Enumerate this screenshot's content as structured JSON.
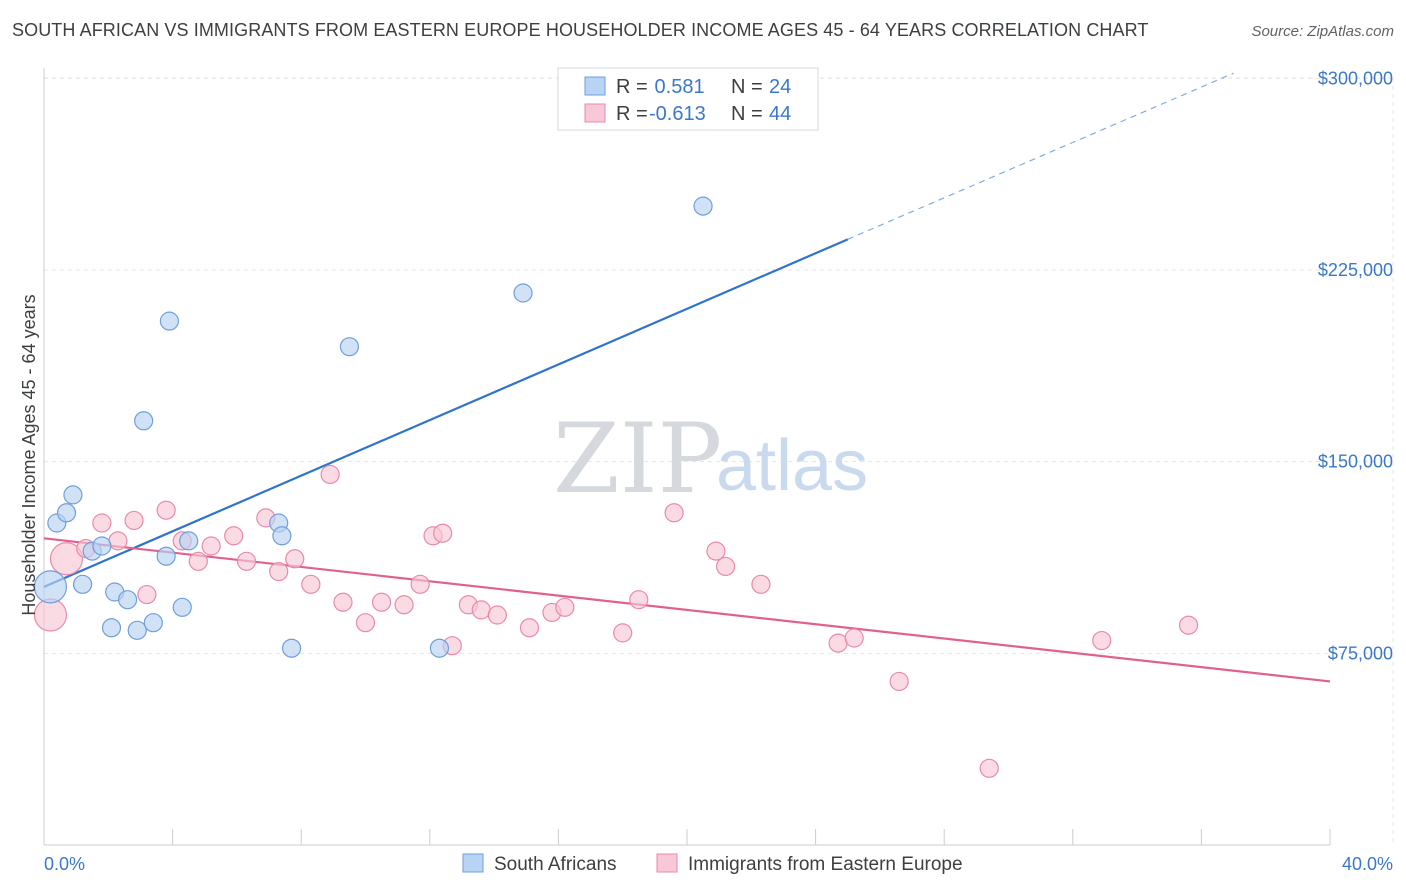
{
  "header": {
    "title": "SOUTH AFRICAN VS IMMIGRANTS FROM EASTERN EUROPE HOUSEHOLDER INCOME AGES 45 - 64 YEARS CORRELATION CHART",
    "source": "Source: ZipAtlas.com"
  },
  "colors": {
    "blue_fill": "#b8d3f3",
    "blue_stroke": "#6e9fdc",
    "blue_line": "#2f74cc",
    "pink_fill": "#f8c8d6",
    "pink_stroke": "#e98aaa",
    "pink_line": "#e0608e",
    "accent_text": "#3b78c9",
    "grid": "#e3e6ea"
  },
  "watermark": {
    "part1": "ZIP",
    "part2": "atlas"
  },
  "chart_data": {
    "type": "scatter",
    "title": "SOUTH AFRICAN VS IMMIGRANTS FROM EASTERN EUROPE HOUSEHOLDER INCOME AGES 45 - 64 YEARS CORRELATION CHART",
    "xlabel": "",
    "ylabel": "Householder Income Ages 45 - 64 years",
    "xlim": [
      0,
      40
    ],
    "ylim": [
      0,
      310000
    ],
    "x_tick_labels": {
      "left": "0.0%",
      "right": "40.0%"
    },
    "y_ticks": [
      {
        "value": 75000,
        "label": "$75,000"
      },
      {
        "value": 150000,
        "label": "$150,000"
      },
      {
        "value": 225000,
        "label": "$225,000"
      },
      {
        "value": 300000,
        "label": "$300,000"
      }
    ],
    "legend": {
      "position": "top-center",
      "rows": [
        {
          "r_label": "R =",
          "r_value": " 0.581",
          "n_label": "N =",
          "n_value": "24"
        },
        {
          "r_label": "R =",
          "r_value": "-0.613",
          "n_label": "N =",
          "n_value": "44"
        }
      ]
    },
    "series": [
      {
        "name": "South Africans",
        "color": "blue",
        "trend": {
          "x0": 0.0,
          "y0": 101000,
          "x1": 25.0,
          "y1": 237000,
          "dash_x1": 37.0,
          "dash_y1": 302000
        },
        "points": [
          {
            "x": 0.2,
            "y": 101000,
            "big": true
          },
          {
            "x": 0.4,
            "y": 126000
          },
          {
            "x": 0.7,
            "y": 130000
          },
          {
            "x": 0.9,
            "y": 137000
          },
          {
            "x": 1.2,
            "y": 102000
          },
          {
            "x": 1.5,
            "y": 115000
          },
          {
            "x": 1.8,
            "y": 117000
          },
          {
            "x": 2.1,
            "y": 85000
          },
          {
            "x": 2.2,
            "y": 99000
          },
          {
            "x": 2.6,
            "y": 96000
          },
          {
            "x": 2.9,
            "y": 84000
          },
          {
            "x": 3.1,
            "y": 166000
          },
          {
            "x": 3.4,
            "y": 87000
          },
          {
            "x": 3.8,
            "y": 113000
          },
          {
            "x": 3.9,
            "y": 205000
          },
          {
            "x": 4.3,
            "y": 93000
          },
          {
            "x": 4.5,
            "y": 119000
          },
          {
            "x": 7.3,
            "y": 126000
          },
          {
            "x": 7.4,
            "y": 121000
          },
          {
            "x": 7.7,
            "y": 77000
          },
          {
            "x": 9.5,
            "y": 195000
          },
          {
            "x": 12.3,
            "y": 77000
          },
          {
            "x": 14.9,
            "y": 216000
          },
          {
            "x": 20.5,
            "y": 250000
          }
        ]
      },
      {
        "name": "Immigrants from Eastern Europe",
        "color": "pink",
        "trend": {
          "x0": 0.0,
          "y0": 120000,
          "x1": 40.0,
          "y1": 64000
        },
        "points": [
          {
            "x": 0.2,
            "y": 90000,
            "big": true
          },
          {
            "x": 0.7,
            "y": 112000,
            "big": true
          },
          {
            "x": 1.3,
            "y": 116000
          },
          {
            "x": 1.8,
            "y": 126000
          },
          {
            "x": 2.3,
            "y": 119000
          },
          {
            "x": 2.8,
            "y": 127000
          },
          {
            "x": 3.2,
            "y": 98000
          },
          {
            "x": 3.8,
            "y": 131000
          },
          {
            "x": 4.3,
            "y": 119000
          },
          {
            "x": 4.8,
            "y": 111000
          },
          {
            "x": 5.2,
            "y": 117000
          },
          {
            "x": 5.9,
            "y": 121000
          },
          {
            "x": 6.3,
            "y": 111000
          },
          {
            "x": 6.9,
            "y": 128000
          },
          {
            "x": 7.3,
            "y": 107000
          },
          {
            "x": 7.8,
            "y": 112000
          },
          {
            "x": 8.3,
            "y": 102000
          },
          {
            "x": 8.9,
            "y": 145000
          },
          {
            "x": 9.3,
            "y": 95000
          },
          {
            "x": 10.0,
            "y": 87000
          },
          {
            "x": 10.5,
            "y": 95000
          },
          {
            "x": 11.2,
            "y": 94000
          },
          {
            "x": 11.7,
            "y": 102000
          },
          {
            "x": 12.1,
            "y": 121000
          },
          {
            "x": 12.7,
            "y": 78000
          },
          {
            "x": 12.4,
            "y": 122000
          },
          {
            "x": 13.2,
            "y": 94000
          },
          {
            "x": 13.6,
            "y": 92000
          },
          {
            "x": 14.1,
            "y": 90000
          },
          {
            "x": 15.1,
            "y": 85000
          },
          {
            "x": 15.8,
            "y": 91000
          },
          {
            "x": 16.2,
            "y": 93000
          },
          {
            "x": 18.0,
            "y": 83000
          },
          {
            "x": 18.5,
            "y": 96000
          },
          {
            "x": 19.6,
            "y": 130000
          },
          {
            "x": 20.9,
            "y": 115000
          },
          {
            "x": 21.2,
            "y": 109000
          },
          {
            "x": 22.3,
            "y": 102000
          },
          {
            "x": 24.7,
            "y": 79000
          },
          {
            "x": 25.2,
            "y": 81000
          },
          {
            "x": 26.6,
            "y": 64000
          },
          {
            "x": 29.4,
            "y": 30000
          },
          {
            "x": 32.9,
            "y": 80000
          },
          {
            "x": 35.6,
            "y": 86000
          }
        ]
      }
    ]
  },
  "bottom_legend": [
    {
      "label": "South Africans",
      "color": "blue"
    },
    {
      "label": "Immigrants from Eastern Europe",
      "color": "pink"
    }
  ]
}
